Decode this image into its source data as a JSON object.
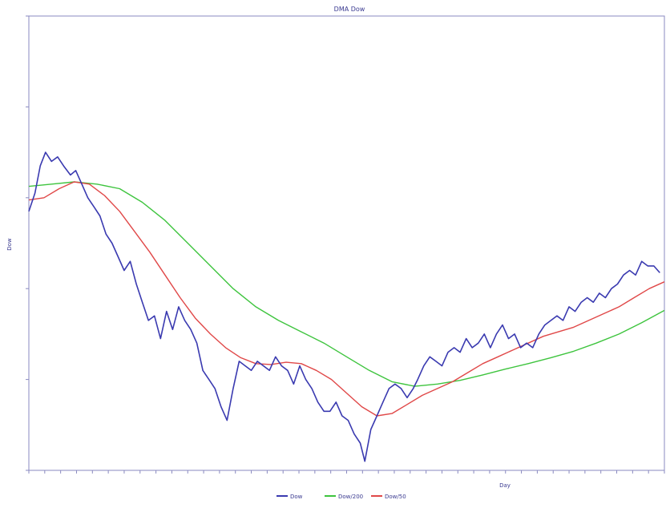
{
  "chart_data": {
    "type": "line",
    "title": "DMA Dow",
    "xlabel": "Day",
    "ylabel": "Dow",
    "ylim": [
      5000,
      15000
    ],
    "yticks": [
      5000,
      7000,
      9000,
      11000,
      13000,
      15000
    ],
    "xlim": [
      0,
      840
    ],
    "x_tick_count": 40,
    "grid": false,
    "legend_position": "bottom-center",
    "series": [
      {
        "name": "Dow",
        "color": "#3a3ab0",
        "points": [
          [
            0,
            10700
          ],
          [
            8,
            11100
          ],
          [
            15,
            11700
          ],
          [
            22,
            12000
          ],
          [
            30,
            11800
          ],
          [
            38,
            11900
          ],
          [
            46,
            11700
          ],
          [
            55,
            11500
          ],
          [
            62,
            11600
          ],
          [
            70,
            11300
          ],
          [
            78,
            11000
          ],
          [
            86,
            10800
          ],
          [
            94,
            10600
          ],
          [
            102,
            10200
          ],
          [
            110,
            10000
          ],
          [
            118,
            9700
          ],
          [
            126,
            9400
          ],
          [
            134,
            9600
          ],
          [
            142,
            9100
          ],
          [
            150,
            8700
          ],
          [
            158,
            8300
          ],
          [
            166,
            8400
          ],
          [
            174,
            7900
          ],
          [
            182,
            8500
          ],
          [
            190,
            8100
          ],
          [
            198,
            8600
          ],
          [
            206,
            8300
          ],
          [
            214,
            8100
          ],
          [
            222,
            7800
          ],
          [
            230,
            7200
          ],
          [
            238,
            7000
          ],
          [
            246,
            6800
          ],
          [
            254,
            6400
          ],
          [
            262,
            6100
          ],
          [
            270,
            6800
          ],
          [
            278,
            7400
          ],
          [
            286,
            7300
          ],
          [
            294,
            7200
          ],
          [
            302,
            7400
          ],
          [
            310,
            7300
          ],
          [
            318,
            7200
          ],
          [
            326,
            7500
          ],
          [
            334,
            7300
          ],
          [
            342,
            7200
          ],
          [
            350,
            6900
          ],
          [
            358,
            7300
          ],
          [
            366,
            7000
          ],
          [
            374,
            6800
          ],
          [
            382,
            6500
          ],
          [
            390,
            6300
          ],
          [
            398,
            6300
          ],
          [
            406,
            6500
          ],
          [
            414,
            6200
          ],
          [
            422,
            6100
          ],
          [
            430,
            5800
          ],
          [
            438,
            5600
          ],
          [
            444,
            5200
          ],
          [
            452,
            5900
          ],
          [
            460,
            6200
          ],
          [
            468,
            6500
          ],
          [
            476,
            6800
          ],
          [
            484,
            6900
          ],
          [
            492,
            6800
          ],
          [
            500,
            6600
          ],
          [
            508,
            6800
          ],
          [
            514,
            7000
          ],
          [
            522,
            7300
          ],
          [
            530,
            7500
          ],
          [
            538,
            7400
          ],
          [
            546,
            7300
          ],
          [
            554,
            7600
          ],
          [
            562,
            7700
          ],
          [
            570,
            7600
          ],
          [
            578,
            7900
          ],
          [
            586,
            7700
          ],
          [
            594,
            7800
          ],
          [
            602,
            8000
          ],
          [
            610,
            7700
          ],
          [
            618,
            8000
          ],
          [
            626,
            8200
          ],
          [
            634,
            7900
          ],
          [
            642,
            8000
          ],
          [
            650,
            7700
          ],
          [
            658,
            7800
          ],
          [
            666,
            7700
          ],
          [
            674,
            8000
          ],
          [
            682,
            8200
          ],
          [
            690,
            8300
          ],
          [
            698,
            8400
          ],
          [
            706,
            8300
          ],
          [
            714,
            8600
          ],
          [
            722,
            8500
          ],
          [
            730,
            8700
          ],
          [
            738,
            8800
          ],
          [
            746,
            8700
          ],
          [
            754,
            8900
          ],
          [
            762,
            8800
          ],
          [
            770,
            9000
          ],
          [
            778,
            9100
          ],
          [
            786,
            9300
          ],
          [
            794,
            9400
          ],
          [
            802,
            9300
          ],
          [
            810,
            9600
          ],
          [
            818,
            9500
          ],
          [
            826,
            9500
          ],
          [
            834,
            9350
          ]
        ]
      },
      {
        "name": "Dow/200",
        "color": "#3ec43e",
        "points": [
          [
            0,
            11250
          ],
          [
            30,
            11300
          ],
          [
            60,
            11350
          ],
          [
            90,
            11300
          ],
          [
            120,
            11200
          ],
          [
            150,
            10900
          ],
          [
            180,
            10500
          ],
          [
            210,
            10000
          ],
          [
            240,
            9500
          ],
          [
            270,
            9000
          ],
          [
            300,
            8600
          ],
          [
            330,
            8300
          ],
          [
            360,
            8050
          ],
          [
            390,
            7800
          ],
          [
            420,
            7500
          ],
          [
            450,
            7200
          ],
          [
            480,
            6950
          ],
          [
            510,
            6850
          ],
          [
            540,
            6900
          ],
          [
            570,
            6980
          ],
          [
            600,
            7100
          ],
          [
            630,
            7230
          ],
          [
            660,
            7350
          ],
          [
            690,
            7480
          ],
          [
            720,
            7620
          ],
          [
            750,
            7800
          ],
          [
            780,
            8000
          ],
          [
            810,
            8250
          ],
          [
            840,
            8520
          ]
        ]
      },
      {
        "name": "Dow/50",
        "color": "#e04848",
        "points": [
          [
            0,
            10950
          ],
          [
            20,
            11000
          ],
          [
            40,
            11200
          ],
          [
            60,
            11350
          ],
          [
            80,
            11300
          ],
          [
            100,
            11050
          ],
          [
            120,
            10700
          ],
          [
            140,
            10250
          ],
          [
            160,
            9800
          ],
          [
            180,
            9300
          ],
          [
            200,
            8800
          ],
          [
            220,
            8350
          ],
          [
            240,
            8000
          ],
          [
            260,
            7700
          ],
          [
            280,
            7480
          ],
          [
            300,
            7350
          ],
          [
            320,
            7330
          ],
          [
            340,
            7380
          ],
          [
            360,
            7350
          ],
          [
            380,
            7200
          ],
          [
            400,
            7000
          ],
          [
            420,
            6700
          ],
          [
            440,
            6400
          ],
          [
            460,
            6200
          ],
          [
            480,
            6250
          ],
          [
            500,
            6450
          ],
          [
            520,
            6650
          ],
          [
            540,
            6800
          ],
          [
            560,
            6950
          ],
          [
            580,
            7150
          ],
          [
            600,
            7350
          ],
          [
            620,
            7500
          ],
          [
            640,
            7650
          ],
          [
            660,
            7800
          ],
          [
            680,
            7950
          ],
          [
            700,
            8050
          ],
          [
            720,
            8150
          ],
          [
            740,
            8300
          ],
          [
            760,
            8450
          ],
          [
            780,
            8600
          ],
          [
            800,
            8800
          ],
          [
            820,
            9000
          ],
          [
            840,
            9150
          ]
        ]
      }
    ]
  }
}
